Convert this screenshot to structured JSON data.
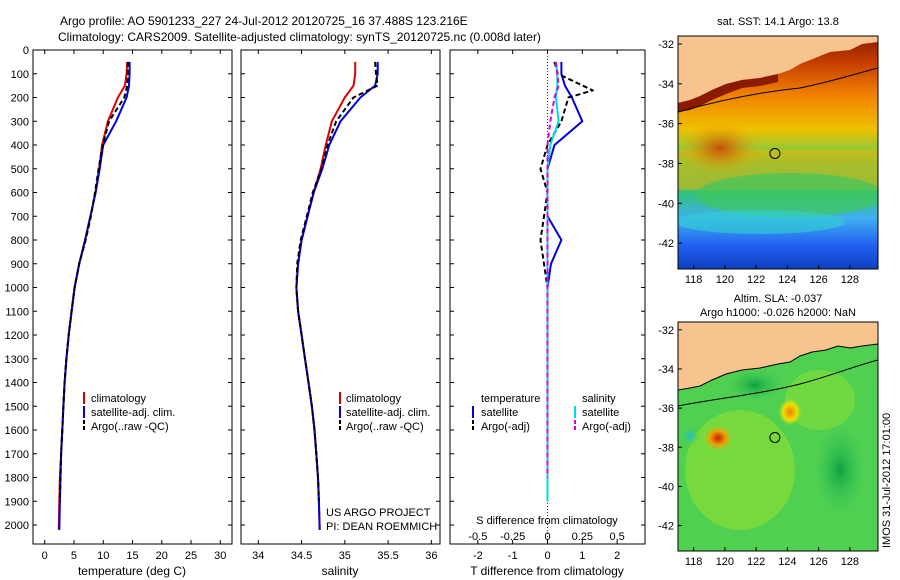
{
  "header": {
    "line1": "Argo profile: AO 5901233_227 24-Jul-2012 20120725_16 37.488S 123.216E",
    "line2": "Climatology: CARS2009. Satellite-adjusted climatology: synTS_20120725.nc (0.008d later)"
  },
  "colors": {
    "climatology": "#e00000",
    "satellite": "#0000e0",
    "argo": "#000000",
    "satellite_salinity": "#00dddd",
    "argo_salinity": "#dd00dd",
    "land": "#f7c490"
  },
  "chart_data": [
    {
      "type": "line",
      "id": "temperature",
      "xlabel": "temperature (deg C)",
      "ylabel": "",
      "xlim": [
        -2,
        32
      ],
      "ylim": [
        2080,
        0
      ],
      "xticks": [
        "0",
        "5",
        "10",
        "15",
        "20",
        "25",
        "30"
      ],
      "xtick_values": [
        0,
        5,
        10,
        15,
        20,
        25,
        30
      ],
      "yticks": [
        "0",
        "100",
        "200",
        "300",
        "400",
        "500",
        "600",
        "700",
        "800",
        "900",
        "1000",
        "1100",
        "1200",
        "1300",
        "1400",
        "1500",
        "1600",
        "1700",
        "1800",
        "1900",
        "2000"
      ],
      "legend": [
        "climatology",
        "satellite-adj. clim.",
        "Argo(..raw -QC)"
      ],
      "series": [
        {
          "name": "climatology",
          "color": "#e00000",
          "x": [
            14.1,
            14.0,
            13.7,
            12.5,
            10.8,
            9.8,
            9.3,
            8.7,
            7.8,
            6.9,
            5.9,
            5.1,
            4.6,
            4.1,
            3.7,
            3.4,
            3.2,
            3.0,
            2.8,
            2.6,
            2.5,
            2.4
          ],
          "y": [
            50,
            100,
            150,
            200,
            300,
            400,
            500,
            600,
            700,
            800,
            900,
            1000,
            1100,
            1200,
            1300,
            1400,
            1500,
            1600,
            1700,
            1800,
            1900,
            2020
          ]
        },
        {
          "name": "satellite-adj. clim.",
          "color": "#0000e0",
          "x": [
            14.5,
            14.5,
            14.4,
            14.0,
            12.2,
            10.0,
            9.4,
            8.7,
            7.8,
            6.9,
            5.9,
            5.1,
            4.6,
            4.1,
            3.7,
            3.4,
            3.2,
            3.0,
            2.8,
            2.7,
            2.6,
            2.5
          ],
          "y": [
            50,
            100,
            150,
            200,
            300,
            400,
            500,
            600,
            700,
            800,
            900,
            1000,
            1100,
            1200,
            1300,
            1400,
            1500,
            1600,
            1700,
            1800,
            1900,
            2020
          ]
        },
        {
          "name": "Argo(..raw -QC)",
          "color": "#000000",
          "dash": "5,3",
          "x": [
            14.2,
            14.2,
            14.1,
            13.6,
            11.0,
            9.9,
            9.2,
            8.6,
            7.9,
            7.0,
            5.9,
            5.1,
            4.6,
            4.1,
            3.7,
            3.4,
            3.2,
            3.0,
            2.8,
            2.7,
            2.6
          ],
          "y": [
            50,
            100,
            150,
            200,
            300,
            400,
            500,
            600,
            700,
            800,
            900,
            1000,
            1100,
            1200,
            1300,
            1400,
            1500,
            1600,
            1700,
            1800,
            1900
          ]
        }
      ]
    },
    {
      "type": "line",
      "id": "salinity",
      "xlabel": "salinity",
      "ylabel": "",
      "xlim": [
        33.8,
        36.1
      ],
      "ylim": [
        2080,
        0
      ],
      "xticks": [
        "34",
        "34.5",
        "35",
        "35.5",
        "36"
      ],
      "xtick_values": [
        34,
        34.5,
        35,
        35.5,
        36
      ],
      "legend": [
        "climatology",
        "satellite-adj. clim.",
        "Argo(..raw -QC)"
      ],
      "annotations": [
        "US ARGO PROJECT",
        "PI: DEAN ROEMMICH"
      ],
      "series": [
        {
          "name": "climatology",
          "color": "#e00000",
          "x": [
            35.12,
            35.12,
            35.1,
            35.0,
            34.85,
            34.78,
            34.72,
            34.64,
            34.57,
            34.5,
            34.46,
            34.44,
            34.46,
            34.5,
            34.54,
            34.58,
            34.62,
            34.65,
            34.67,
            34.69,
            34.7,
            34.71
          ],
          "y": [
            50,
            100,
            150,
            200,
            300,
            400,
            500,
            600,
            700,
            800,
            900,
            1000,
            1100,
            1200,
            1300,
            1400,
            1500,
            1600,
            1700,
            1800,
            1900,
            2020
          ]
        },
        {
          "name": "satellite-adj. clim.",
          "color": "#0000e0",
          "x": [
            35.38,
            35.38,
            35.35,
            35.18,
            34.95,
            34.82,
            34.74,
            34.64,
            34.57,
            34.5,
            34.46,
            34.44,
            34.46,
            34.5,
            34.54,
            34.58,
            34.62,
            34.65,
            34.67,
            34.69,
            34.7,
            34.71
          ],
          "y": [
            50,
            100,
            150,
            200,
            300,
            400,
            500,
            600,
            700,
            800,
            900,
            1000,
            1100,
            1200,
            1300,
            1400,
            1500,
            1600,
            1700,
            1800,
            1900,
            2020
          ]
        },
        {
          "name": "Argo(..raw -QC)",
          "color": "#000000",
          "dash": "5,3",
          "x": [
            35.35,
            35.36,
            35.38,
            35.1,
            34.9,
            34.8,
            34.73,
            34.63,
            34.56,
            34.49,
            34.45,
            34.44,
            34.46,
            34.5,
            34.54,
            34.58,
            34.62,
            34.65,
            34.67,
            34.69,
            34.7
          ],
          "y": [
            50,
            100,
            150,
            200,
            300,
            400,
            500,
            600,
            700,
            800,
            900,
            1000,
            1100,
            1200,
            1300,
            1400,
            1500,
            1600,
            1700,
            1800,
            1900
          ]
        }
      ]
    },
    {
      "type": "line",
      "id": "difference",
      "xlabel": "T difference from climatology",
      "xlabel_top": "S difference from climatology",
      "xlim": [
        -2.8,
        2.8
      ],
      "xlim_top": [
        -0.7,
        0.7
      ],
      "ylim": [
        2080,
        0
      ],
      "xticks": [
        "-2",
        "-1",
        "0",
        "1",
        "2"
      ],
      "xtick_values": [
        -2,
        -1,
        0,
        1,
        2
      ],
      "xticks_top": [
        "-0.5",
        "-0.25",
        "0",
        "0.25",
        "0.5"
      ],
      "legend_left_title": "temperature",
      "legend_left": [
        "satellite",
        "Argo(-adj)"
      ],
      "legend_right_title": "salinity",
      "legend_right": [
        "satellite",
        "Argo(-adj)"
      ],
      "series": [
        {
          "name": "satellite",
          "axis": "T",
          "color": "#0000e0",
          "x": [
            0.4,
            0.4,
            0.5,
            0.7,
            1.0,
            0.2,
            0.0,
            0.0,
            0.0,
            0.4,
            0.1,
            0.0,
            0.0,
            0.0,
            0.0,
            0.0,
            0.0,
            0.0,
            0.0,
            0.0
          ],
          "y": [
            50,
            100,
            150,
            200,
            300,
            400,
            500,
            600,
            700,
            800,
            900,
            1000,
            1100,
            1200,
            1300,
            1400,
            1500,
            1600,
            1700,
            1900
          ]
        },
        {
          "name": "Argo(-adj)",
          "axis": "T",
          "color": "#000000",
          "dash": "5,3",
          "x": [
            0.2,
            0.3,
            1.3,
            0.6,
            0.4,
            0.0,
            -0.2,
            0.0,
            -0.1,
            -0.2,
            -0.1,
            0.0,
            0.0,
            0.0,
            0.0,
            0.0,
            0.0,
            0.0,
            0.0
          ],
          "y": [
            50,
            100,
            170,
            200,
            300,
            400,
            500,
            600,
            700,
            800,
            900,
            1000,
            1100,
            1200,
            1300,
            1400,
            1500,
            1600,
            1800
          ]
        },
        {
          "name": "satellite",
          "axis": "S",
          "color": "#00dddd",
          "x": [
            0.06,
            0.07,
            0.07,
            0.06,
            0.08,
            0.02,
            0.0,
            0.0,
            0.0,
            0.0,
            0.0,
            0.0,
            0.0,
            0.0,
            0.0,
            0.0,
            0.0,
            0.0,
            0.0,
            0.0
          ],
          "y": [
            50,
            100,
            150,
            200,
            300,
            400,
            500,
            600,
            700,
            800,
            900,
            1000,
            1100,
            1200,
            1300,
            1400,
            1500,
            1600,
            1700,
            1900
          ]
        },
        {
          "name": "Argo(-adj)",
          "axis": "S",
          "color": "#dd00dd",
          "dash": "5,3",
          "x": [
            0.06,
            0.07,
            0.08,
            0.05,
            0.02,
            0.0,
            0.0,
            0.0,
            0.0,
            0.0,
            0.0,
            0.0,
            0.0,
            0.0,
            0.0,
            0.0,
            0.0,
            0.0,
            0.0
          ],
          "y": [
            50,
            100,
            150,
            200,
            300,
            400,
            500,
            600,
            700,
            800,
            900,
            1000,
            1100,
            1200,
            1300,
            1400,
            1500,
            1600,
            1800
          ]
        }
      ]
    },
    {
      "type": "heatmap",
      "id": "sst_map",
      "title": "sat. SST: 14.1  Argo: 13.8",
      "xlim": [
        117,
        129.8
      ],
      "ylim": [
        -43.3,
        -31.6
      ],
      "xticks": [
        "118",
        "120",
        "122",
        "124",
        "126",
        "128"
      ],
      "xtick_values": [
        118,
        120,
        122,
        124,
        126,
        128
      ],
      "yticks": [
        "-32",
        "-34",
        "-36",
        "-38",
        "-40",
        "-42"
      ],
      "ytick_values": [
        -32,
        -34,
        -36,
        -38,
        -40,
        -42
      ],
      "marker": [
        123.2,
        -37.5
      ]
    },
    {
      "type": "heatmap",
      "id": "sla_map",
      "title_line1": "Altim. SLA: -0.037",
      "title_line2": "Argo h1000: -0.026 h2000: NaN",
      "xlim": [
        117,
        129.8
      ],
      "ylim": [
        -43.3,
        -31.6
      ],
      "xticks": [
        "118",
        "120",
        "122",
        "124",
        "126",
        "128"
      ],
      "xtick_values": [
        118,
        120,
        122,
        124,
        126,
        128
      ],
      "yticks": [
        "-32",
        "-34",
        "-36",
        "-38",
        "-40",
        "-42"
      ],
      "ytick_values": [
        -32,
        -34,
        -36,
        -38,
        -40,
        -42
      ],
      "marker": [
        123.2,
        -37.5
      ]
    }
  ],
  "side_label": "IMOS 31-Jul-2012 17:01:00"
}
